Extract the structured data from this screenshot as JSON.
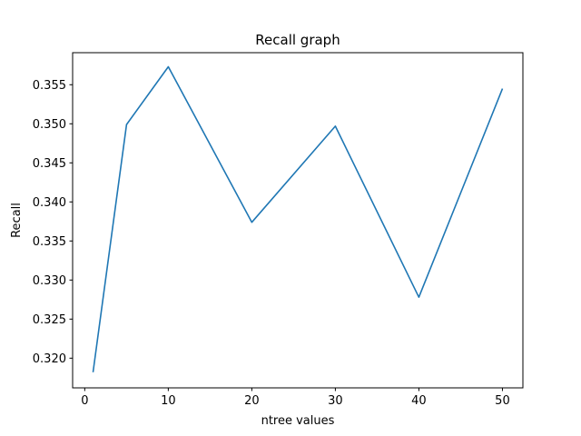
{
  "chart_data": {
    "type": "line",
    "title": "Recall graph",
    "xlabel": "ntree values",
    "ylabel": "Recall",
    "xlim": [
      -1.45,
      52.45
    ],
    "ylim": [
      0.3162,
      0.3591
    ],
    "xticks": [
      0,
      10,
      20,
      30,
      40,
      50
    ],
    "yticks": [
      0.32,
      0.325,
      0.33,
      0.335,
      0.34,
      0.345,
      0.35,
      0.355
    ],
    "ytick_labels": [
      "0.320",
      "0.325",
      "0.330",
      "0.335",
      "0.340",
      "0.345",
      "0.350",
      "0.355"
    ],
    "grid": false,
    "series": [
      {
        "color": "#1f77b4",
        "x": [
          1,
          5,
          10,
          20,
          30,
          40,
          50
        ],
        "y": [
          0.3182,
          0.3499,
          0.3573,
          0.3374,
          0.3497,
          0.3278,
          0.3545
        ]
      }
    ]
  }
}
